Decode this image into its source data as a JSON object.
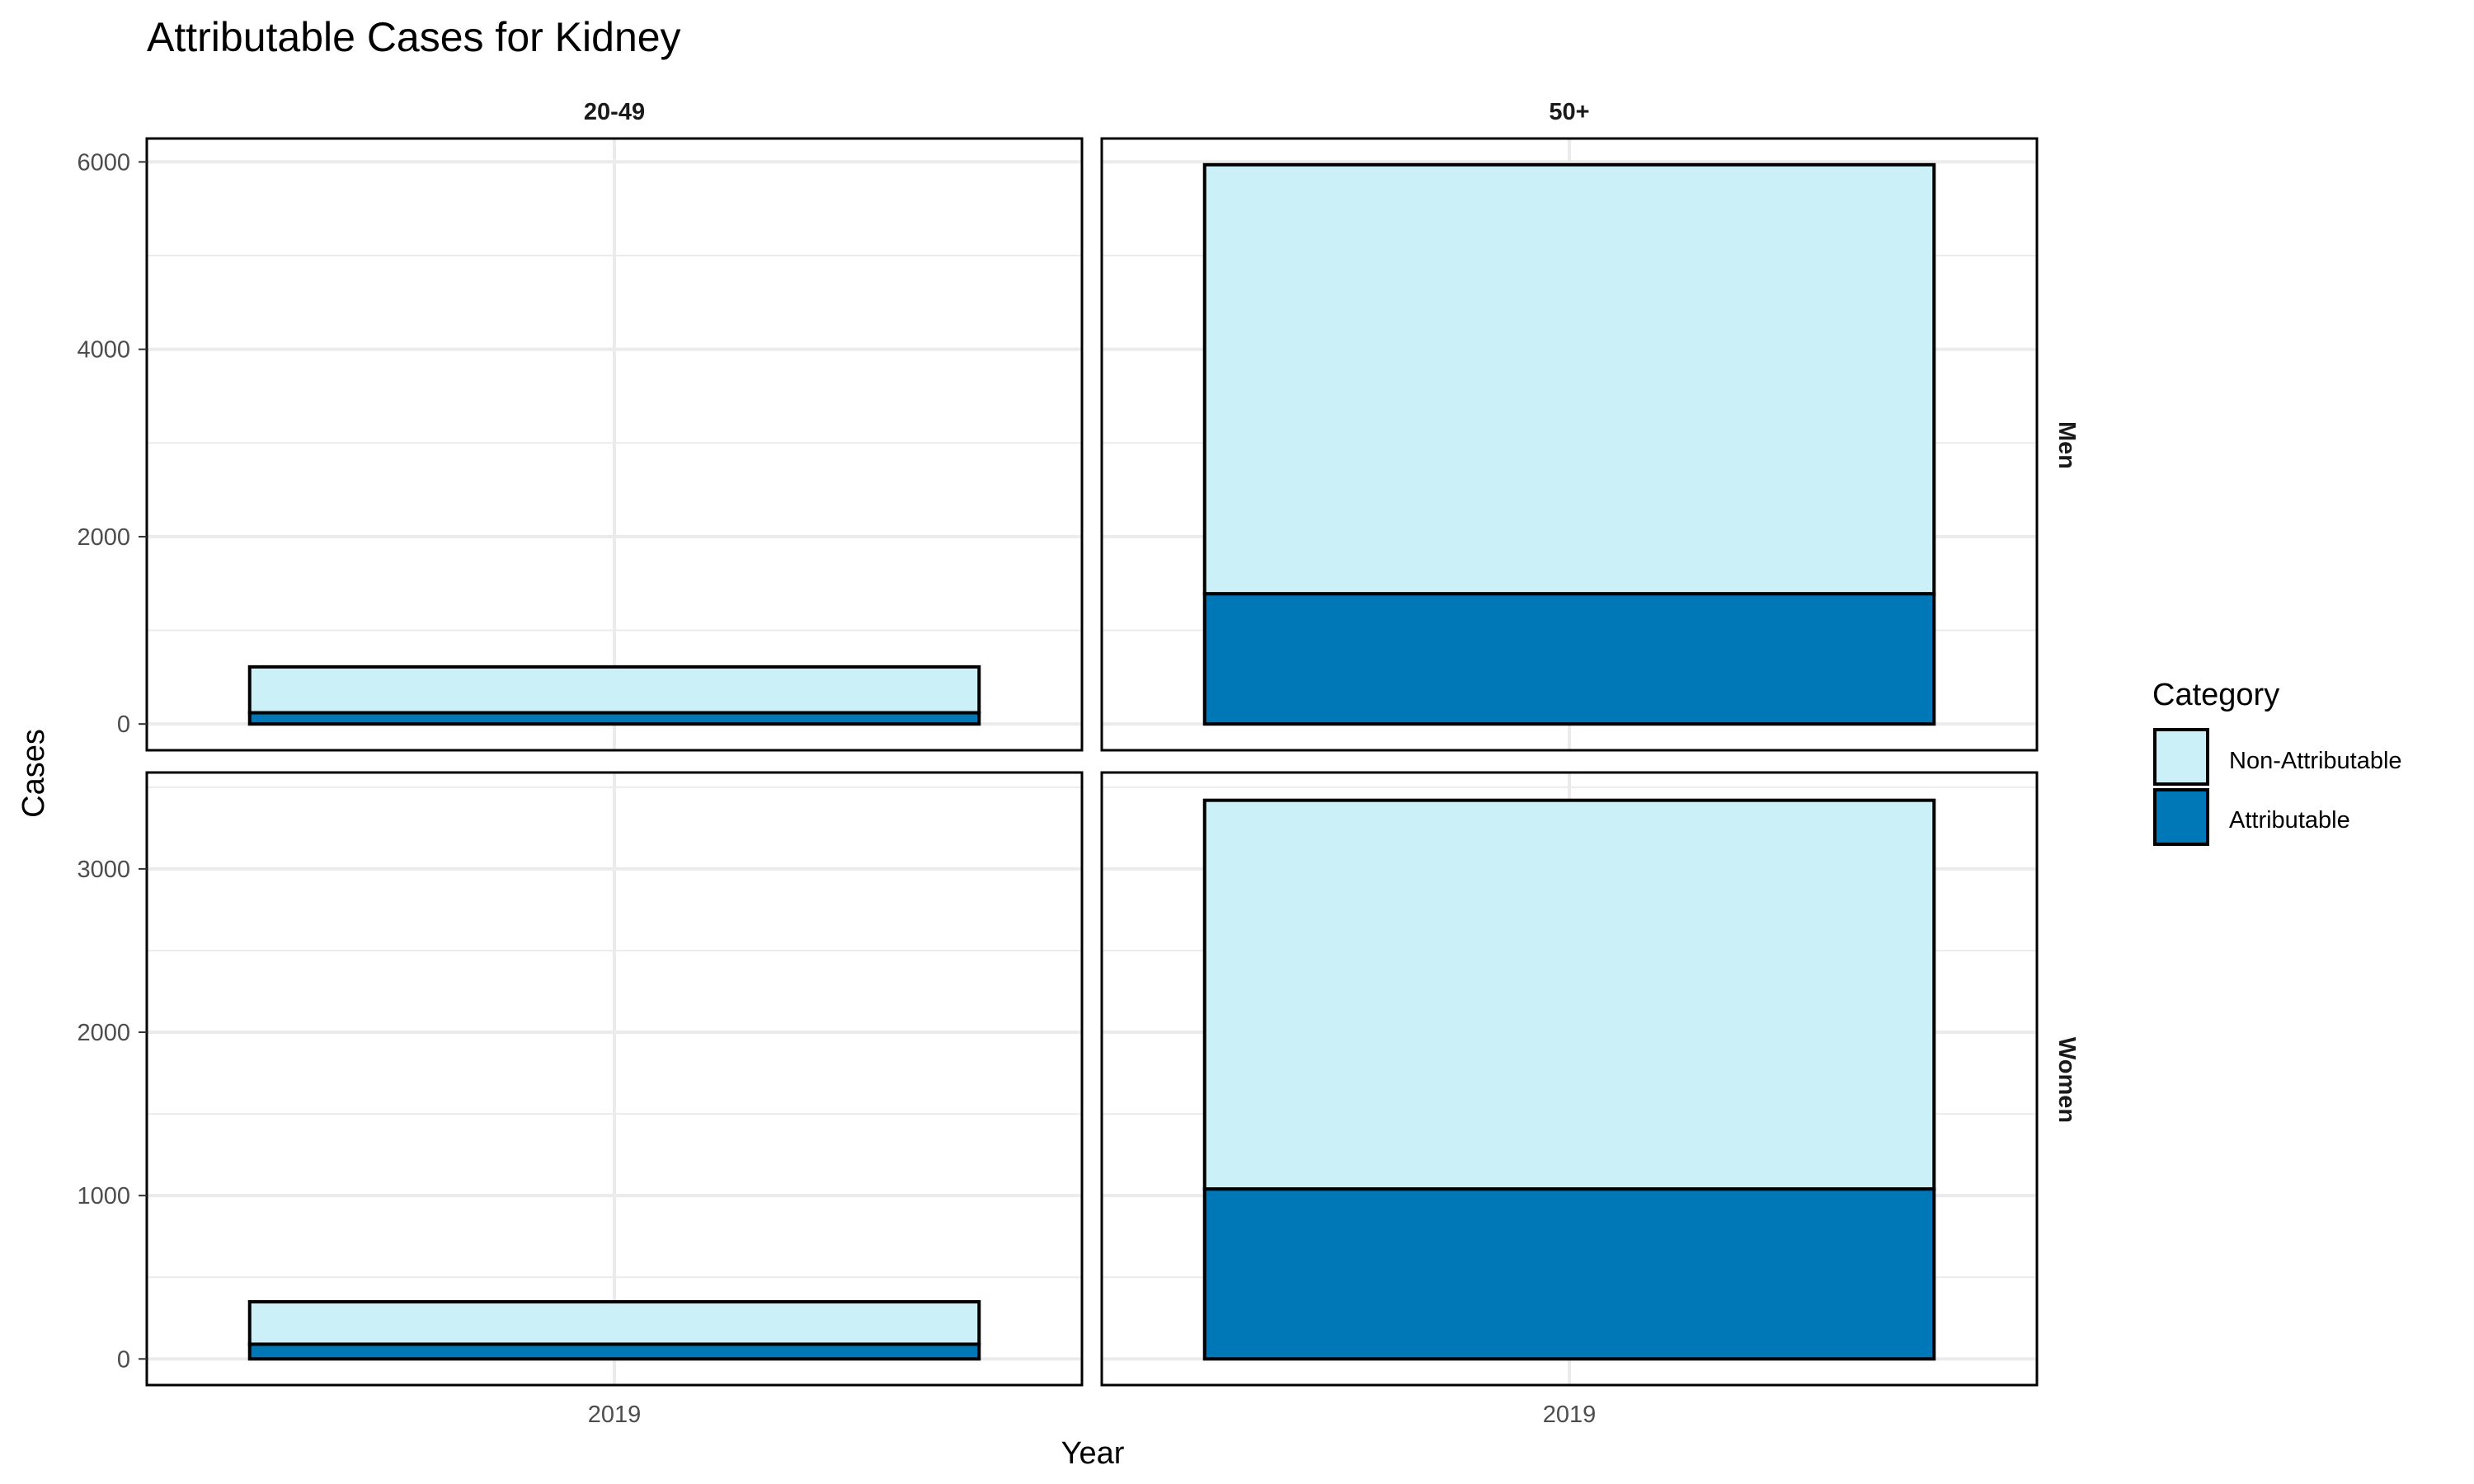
{
  "chart_data": {
    "type": "bar",
    "stacked": true,
    "title": "Attributable Cases for Kidney",
    "xlabel": "Year",
    "ylabel": "Cases",
    "column_facets": [
      "20-49",
      "50+"
    ],
    "row_facets": [
      "Men",
      "Women"
    ],
    "x_categories": [
      "2019"
    ],
    "legend": {
      "title": "Category",
      "position": "right",
      "entries": [
        {
          "name": "Non-Attributable",
          "color": "#CCF0F8"
        },
        {
          "name": "Attributable",
          "color": "#0077B6"
        }
      ]
    },
    "rows": [
      {
        "name": "Men",
        "ylim": [
          -280,
          6250
        ],
        "yticks": [
          0,
          2000,
          4000,
          6000
        ],
        "yticks_labels": [
          "0",
          "2000",
          "4000",
          "6000"
        ],
        "panels": [
          {
            "column": "20-49",
            "x": "2019",
            "attributable": 120,
            "non_attributable": 490,
            "total": 610
          },
          {
            "column": "50+",
            "x": "2019",
            "attributable": 1390,
            "non_attributable": 4580,
            "total": 5970
          }
        ]
      },
      {
        "name": "Women",
        "ylim": [
          -160,
          3590
        ],
        "yticks": [
          0,
          1000,
          2000,
          3000
        ],
        "yticks_labels": [
          "0",
          "1000",
          "2000",
          "3000"
        ],
        "panels": [
          {
            "column": "20-49",
            "x": "2019",
            "attributable": 90,
            "non_attributable": 260,
            "total": 350
          },
          {
            "column": "50+",
            "x": "2019",
            "attributable": 1040,
            "non_attributable": 2380,
            "total": 3420
          }
        ]
      }
    ]
  }
}
